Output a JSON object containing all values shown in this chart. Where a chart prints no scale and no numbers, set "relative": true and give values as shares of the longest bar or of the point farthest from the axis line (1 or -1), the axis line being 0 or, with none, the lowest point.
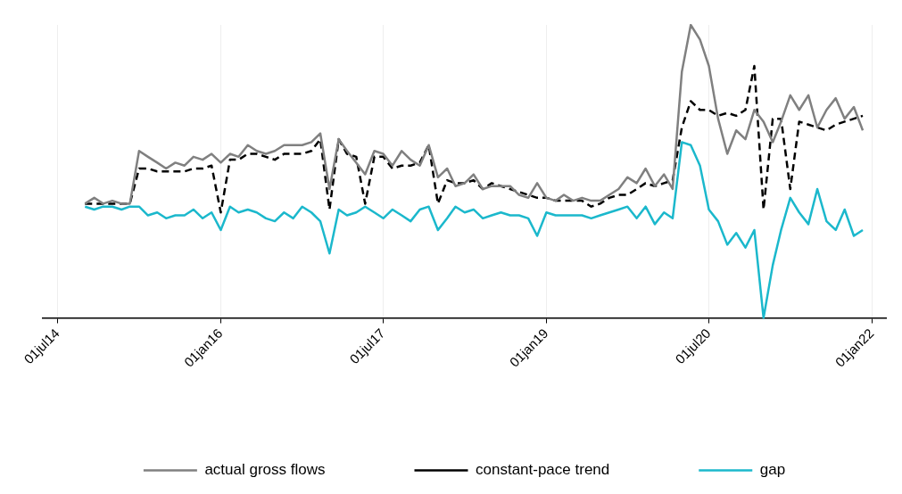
{
  "chart_data": {
    "type": "line",
    "relative": true,
    "grid": "x",
    "legend": "bottom",
    "xlim": [
      "2014-05-12",
      "2022-02-17"
    ],
    "xticks": [
      {
        "value": "2014-07-01",
        "label": "01jul14"
      },
      {
        "value": "2016-01-01",
        "label": "01jan16"
      },
      {
        "value": "2017-07-01",
        "label": "01jul17"
      },
      {
        "value": "2019-01-01",
        "label": "01jan19"
      },
      {
        "value": "2020-07-01",
        "label": "01jul20"
      },
      {
        "value": "2022-01-01",
        "label": "01jan22"
      }
    ],
    "x": [
      "2014-10",
      "2014-11",
      "2014-12",
      "2015-01",
      "2015-02",
      "2015-03",
      "2015-04",
      "2015-05",
      "2015-06",
      "2015-07",
      "2015-08",
      "2015-09",
      "2015-10",
      "2015-11",
      "2015-12",
      "2016-01",
      "2016-02",
      "2016-03",
      "2016-04",
      "2016-05",
      "2016-06",
      "2016-07",
      "2016-08",
      "2016-09",
      "2016-10",
      "2016-11",
      "2016-12",
      "2017-01",
      "2017-02",
      "2017-03",
      "2017-04",
      "2017-05",
      "2017-06",
      "2017-07",
      "2017-08",
      "2017-09",
      "2017-10",
      "2017-11",
      "2017-12",
      "2018-01",
      "2018-02",
      "2018-03",
      "2018-04",
      "2018-05",
      "2018-06",
      "2018-07",
      "2018-08",
      "2018-09",
      "2018-10",
      "2018-11",
      "2018-12",
      "2019-01",
      "2019-02",
      "2019-03",
      "2019-04",
      "2019-05",
      "2019-06",
      "2019-07",
      "2019-08",
      "2019-09",
      "2019-10",
      "2019-11",
      "2019-12",
      "2020-01",
      "2020-02",
      "2020-03",
      "2020-04",
      "2020-05",
      "2020-06",
      "2020-07",
      "2020-08",
      "2020-09",
      "2020-10",
      "2020-11",
      "2020-12",
      "2021-01",
      "2021-02",
      "2021-03",
      "2021-04",
      "2021-05",
      "2021-06",
      "2021-07",
      "2021-08",
      "2021-09",
      "2021-10",
      "2021-11",
      "2021-12"
    ],
    "series": [
      {
        "name": "actual gross flows",
        "color": "#808080",
        "line_style": "solid",
        "values": [
          0.39,
          0.41,
          0.39,
          0.4,
          0.39,
          0.39,
          0.57,
          0.55,
          0.53,
          0.51,
          0.53,
          0.52,
          0.55,
          0.54,
          0.56,
          0.53,
          0.56,
          0.55,
          0.59,
          0.57,
          0.56,
          0.57,
          0.59,
          0.59,
          0.59,
          0.6,
          0.63,
          0.44,
          0.61,
          0.57,
          0.53,
          0.49,
          0.57,
          0.56,
          0.52,
          0.57,
          0.54,
          0.52,
          0.59,
          0.48,
          0.51,
          0.45,
          0.46,
          0.49,
          0.44,
          0.45,
          0.45,
          0.45,
          0.42,
          0.41,
          0.46,
          0.41,
          0.4,
          0.42,
          0.4,
          0.41,
          0.4,
          0.4,
          0.42,
          0.44,
          0.48,
          0.46,
          0.51,
          0.45,
          0.49,
          0.44,
          0.84,
          1,
          0.95,
          0.86,
          0.68,
          0.56,
          0.64,
          0.61,
          0.71,
          0.67,
          0.6,
          0.67,
          0.76,
          0.71,
          0.76,
          0.65,
          0.71,
          0.75,
          0.68,
          0.72,
          0.64
        ]
      },
      {
        "name": "constant-pace trend",
        "color": "#000000",
        "line_style": "dashed",
        "values": [
          0.39,
          0.39,
          0.39,
          0.39,
          0.39,
          0.39,
          0.51,
          0.51,
          0.5,
          0.5,
          0.5,
          0.5,
          0.51,
          0.51,
          0.52,
          0.36,
          0.54,
          0.54,
          0.56,
          0.56,
          0.55,
          0.54,
          0.56,
          0.56,
          0.56,
          0.57,
          0.61,
          0.37,
          0.61,
          0.56,
          0.55,
          0.39,
          0.55,
          0.55,
          0.51,
          0.52,
          0.52,
          0.53,
          0.59,
          0.39,
          0.47,
          0.46,
          0.46,
          0.47,
          0.44,
          0.46,
          0.45,
          0.44,
          0.43,
          0.42,
          0.41,
          0.41,
          0.4,
          0.4,
          0.4,
          0.4,
          0.38,
          0.39,
          0.41,
          0.42,
          0.42,
          0.44,
          0.46,
          0.45,
          0.46,
          0.47,
          0.65,
          0.74,
          0.71,
          0.71,
          0.69,
          0.7,
          0.69,
          0.71,
          0.86,
          0.37,
          0.68,
          0.68,
          0.44,
          0.67,
          0.66,
          0.65,
          0.64,
          0.66,
          0.67,
          0.68,
          0.69
        ]
      },
      {
        "name": "gap",
        "color": "#1bb8cc",
        "line_style": "solid",
        "values": [
          0.38,
          0.37,
          0.38,
          0.38,
          0.37,
          0.38,
          0.38,
          0.35,
          0.36,
          0.34,
          0.35,
          0.35,
          0.37,
          0.34,
          0.36,
          0.3,
          0.38,
          0.36,
          0.37,
          0.36,
          0.34,
          0.33,
          0.36,
          0.34,
          0.38,
          0.36,
          0.33,
          0.22,
          0.37,
          0.35,
          0.36,
          0.38,
          0.36,
          0.34,
          0.37,
          0.35,
          0.33,
          0.37,
          0.38,
          0.3,
          0.34,
          0.38,
          0.36,
          0.37,
          0.34,
          0.35,
          0.36,
          0.35,
          0.35,
          0.34,
          0.28,
          0.36,
          0.35,
          0.35,
          0.35,
          0.35,
          0.34,
          0.35,
          0.36,
          0.37,
          0.38,
          0.34,
          0.38,
          0.32,
          0.36,
          0.34,
          0.6,
          0.59,
          0.52,
          0.37,
          0.33,
          0.25,
          0.29,
          0.24,
          0.3,
          0,
          0.18,
          0.3,
          0.41,
          0.36,
          0.32,
          0.44,
          0.33,
          0.3,
          0.37,
          0.28,
          0.3
        ]
      }
    ]
  }
}
